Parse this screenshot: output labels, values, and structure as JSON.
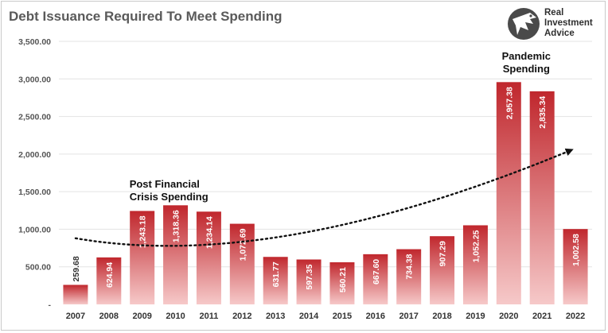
{
  "chart_data": {
    "type": "bar",
    "title": "Debt Issuance Required To Meet Spending",
    "categories": [
      "2007",
      "2008",
      "2009",
      "2010",
      "2011",
      "2012",
      "2013",
      "2014",
      "2015",
      "2016",
      "2017",
      "2018",
      "2019",
      "2020",
      "2021",
      "2022"
    ],
    "values": [
      259.68,
      624.94,
      1243.18,
      1318.36,
      1234.14,
      1072.69,
      631.77,
      597.35,
      560.21,
      667.6,
      734.38,
      907.29,
      1052.25,
      2957.38,
      2835.34,
      1002.58
    ],
    "value_labels": [
      "259.68",
      "624.94",
      "1,243.18",
      "1,318.36",
      "1,234.14",
      "1,072.69",
      "631.77",
      "597.35",
      "560.21",
      "667.60",
      "734.38",
      "907.29",
      "1,052.25",
      "2,957.38",
      "2,835.34",
      "1,002.58"
    ],
    "y_tick_labels": [
      "-",
      "500.00",
      "1,000.00",
      "1,500.00",
      "2,000.00",
      "2,500.00",
      "3,000.00",
      "3,500.00"
    ],
    "ylim": [
      0,
      3500
    ],
    "grid": true,
    "trend_line": {
      "style": "dotted",
      "arrow": true,
      "values": [
        880,
        2050
      ]
    },
    "annotations": [
      {
        "lines": [
          "Post Financial",
          "Crisis Spending"
        ],
        "near": "2010"
      },
      {
        "lines": [
          "Pandemic",
          "Spending"
        ],
        "near": "2020"
      }
    ],
    "colors": {
      "bar_top": "#c0272d",
      "bar_bottom": "#f6c9c9",
      "grid": "#e3e3e3",
      "trend": "#111111"
    }
  },
  "logo": {
    "line1": "Real",
    "line2": "Investment",
    "line3": "Advice"
  }
}
